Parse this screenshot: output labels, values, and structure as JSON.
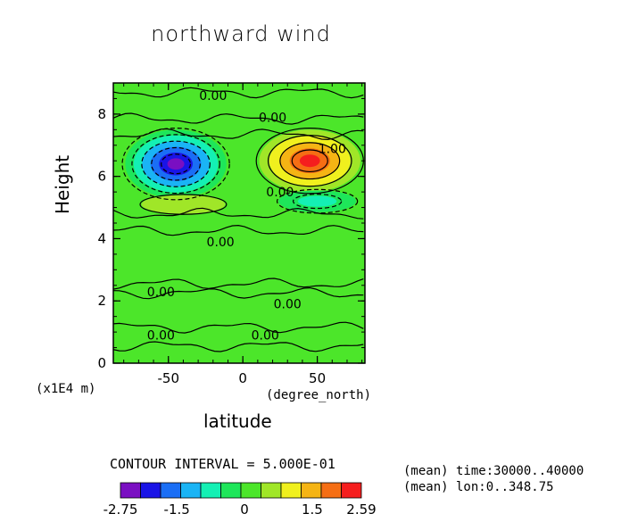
{
  "title": "northward wind",
  "contour_interval": "CONTOUR INTERVAL = 5.000E-01",
  "mean_time": "(mean) time:30000..40000",
  "mean_lon": "(mean) lon:0..348.75",
  "y_unit": "(x1E4 m)",
  "x_unit": "(degree_north)",
  "colorbar": {
    "labels": [
      "-2.75",
      "-1.5",
      "0",
      "1.5",
      "2.59"
    ],
    "colors": [
      "#7a0fc2",
      "#1a14e6",
      "#1a6ef5",
      "#1ab4f5",
      "#14f0b4",
      "#1ee65a",
      "#4ce62a",
      "#a0e628",
      "#f0f01e",
      "#f5b414",
      "#f56e14",
      "#f51e1e"
    ]
  },
  "chart_data": {
    "type": "heatmap",
    "title": "northward wind",
    "xlabel": "latitude",
    "ylabel": "Height",
    "xlim": [
      -87,
      82
    ],
    "ylim": [
      0,
      9
    ],
    "x_ticks": [
      -50,
      0,
      50
    ],
    "y_ticks": [
      0,
      2,
      4,
      6,
      8
    ],
    "vmin": -2.75,
    "vmax": 2.59,
    "contour_interval": 0.5,
    "grid": false,
    "features": [
      {
        "kind": "minimum",
        "lat": -45,
        "height": 6.4,
        "value": -2.75
      },
      {
        "kind": "maximum",
        "lat": 45,
        "height": 6.5,
        "value": 2.59
      },
      {
        "kind": "weak_negative",
        "lat": 50,
        "height": 5.2,
        "value": -0.7
      },
      {
        "kind": "weak_positive",
        "lat": -40,
        "height": 5.1,
        "value": 0.6
      }
    ],
    "contour_labels": [
      {
        "text": "0.00",
        "lat": -20,
        "height": 8.6
      },
      {
        "text": "0.00",
        "lat": 20,
        "height": 7.9
      },
      {
        "text": "1.00",
        "lat": 60,
        "height": 6.9
      },
      {
        "text": "0.00",
        "lat": 25,
        "height": 5.5
      },
      {
        "text": "0.00",
        "lat": -15,
        "height": 3.9
      },
      {
        "text": "0.00",
        "lat": -55,
        "height": 2.3
      },
      {
        "text": "0.00",
        "lat": 30,
        "height": 1.9
      },
      {
        "text": "0.00",
        "lat": -55,
        "height": 0.9
      },
      {
        "text": "0.00",
        "lat": 15,
        "height": 0.9
      }
    ]
  }
}
